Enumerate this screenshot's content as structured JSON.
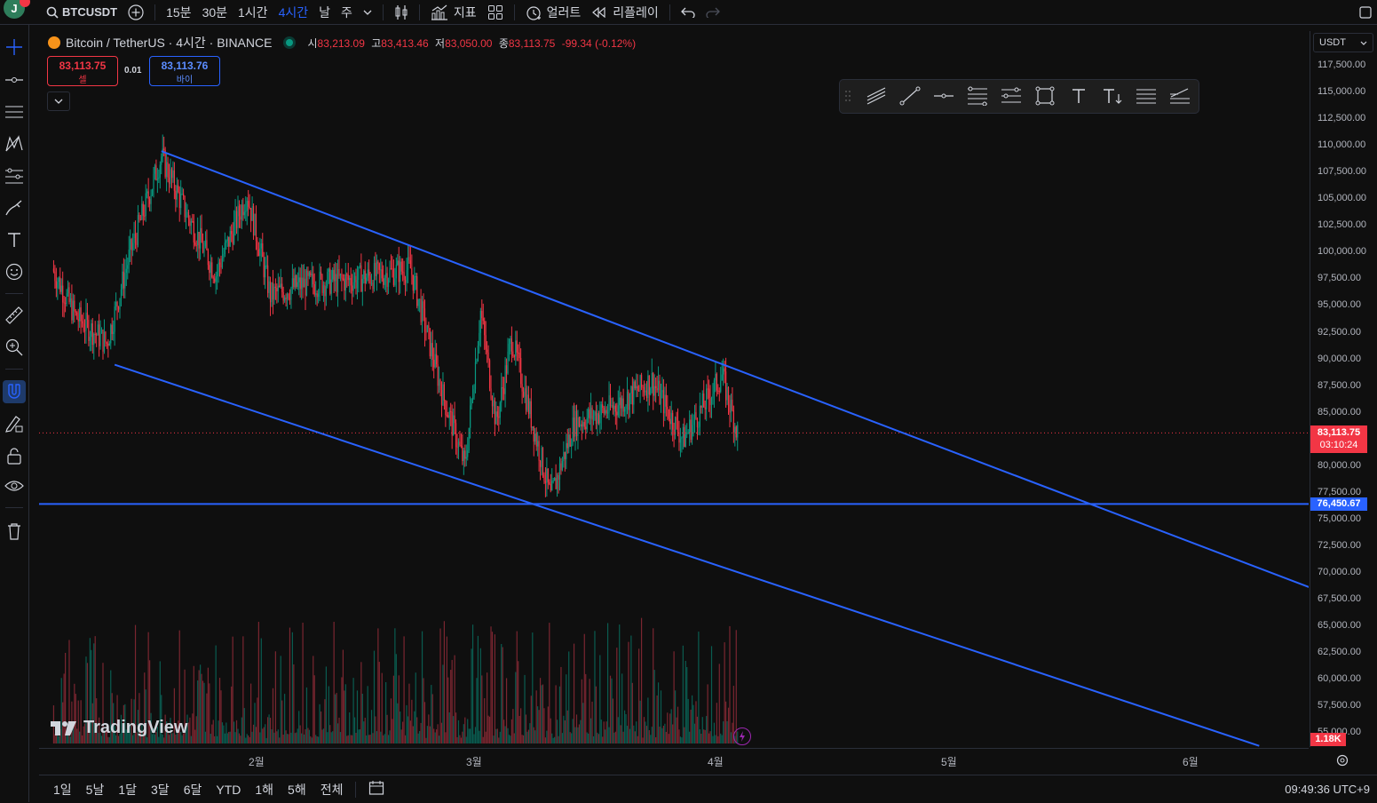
{
  "header": {
    "avatar_letter": "J",
    "symbol": "BTCUSDT",
    "intervals": [
      "15분",
      "30분",
      "1시간",
      "4시간",
      "날",
      "주"
    ],
    "active_interval": "4시간",
    "indicators_label": "지표",
    "alert_label": "얼러트",
    "replay_label": "리플레이"
  },
  "legend": {
    "title": "Bitcoin / TetherUS · 4시간 · BINANCE",
    "open_label": "시",
    "open": "83,213.09",
    "high_label": "고",
    "high": "83,413.46",
    "low_label": "저",
    "low": "83,050.00",
    "close_label": "종",
    "close": "83,113.75",
    "change": "-99.34 (-0.12%)"
  },
  "trade": {
    "sell_price": "83,113.75",
    "sell_label": "셀",
    "spread": "0.01",
    "buy_price": "83,113.76",
    "buy_label": "바이"
  },
  "price_axis": {
    "currency": "USDT",
    "labels": [
      "117,500.00",
      "115,000.00",
      "112,500.00",
      "110,000.00",
      "107,500.00",
      "105,000.00",
      "102,500.00",
      "100,000.00",
      "97,500.00",
      "95,000.00",
      "92,500.00",
      "90,000.00",
      "87,500.00",
      "85,000.00",
      "82,500.00",
      "80,000.00",
      "77,500.00",
      "75,000.00",
      "72,500.00",
      "70,000.00",
      "67,500.00",
      "65,000.00",
      "62,500.00",
      "60,000.00",
      "57,500.00",
      "55,000.00"
    ],
    "current_price": "83,113.75",
    "countdown": "03:10:24",
    "line_price": "76,450.67",
    "volume_label": "1.18K"
  },
  "time_axis": {
    "labels": [
      "2월",
      "3월",
      "4월",
      "5월",
      "6월"
    ]
  },
  "bottom": {
    "ranges": [
      "1일",
      "5날",
      "1달",
      "3달",
      "6달",
      "YTD",
      "1해",
      "5해",
      "전체"
    ],
    "clock": "09:49:36 UTC+9"
  },
  "watermark": "TradingView",
  "colors": {
    "up": "#089981",
    "down": "#f23645",
    "line": "#2962ff",
    "accent": "#2962ff"
  },
  "chart_data": {
    "type": "candlestick",
    "series": [
      {
        "name": "BTCUSDT 4시간",
        "points": [
          {
            "date": "2025-01-06",
            "close": 98500
          },
          {
            "date": "2025-01-09",
            "close": 94000
          },
          {
            "date": "2025-01-13",
            "close": 91500
          },
          {
            "date": "2025-01-16",
            "close": 100000
          },
          {
            "date": "2025-01-20",
            "close": 109000
          },
          {
            "date": "2025-01-23",
            "close": 104000
          },
          {
            "date": "2025-01-27",
            "close": 98000
          },
          {
            "date": "2025-01-31",
            "close": 105500
          },
          {
            "date": "2025-02-03",
            "close": 96000
          },
          {
            "date": "2025-02-07",
            "close": 97000
          },
          {
            "date": "2025-02-14",
            "close": 97500
          },
          {
            "date": "2025-02-21",
            "close": 98500
          },
          {
            "date": "2025-02-25",
            "close": 87000
          },
          {
            "date": "2025-02-28",
            "close": 80000
          },
          {
            "date": "2025-03-02",
            "close": 94500
          },
          {
            "date": "2025-03-04",
            "close": 84000
          },
          {
            "date": "2025-03-06",
            "close": 92000
          },
          {
            "date": "2025-03-11",
            "close": 77000
          },
          {
            "date": "2025-03-14",
            "close": 84000
          },
          {
            "date": "2025-03-19",
            "close": 85500
          },
          {
            "date": "2025-03-24",
            "close": 88000
          },
          {
            "date": "2025-03-28",
            "close": 82500
          },
          {
            "date": "2025-04-02",
            "close": 88500
          },
          {
            "date": "2025-04-04",
            "close": 83113.75
          }
        ]
      }
    ],
    "trendlines": [
      {
        "label": "upper",
        "from": {
          "date": "2025-01-20",
          "price": 109500
        },
        "to": {
          "date": "2025-06-17",
          "price": 68500
        }
      },
      {
        "label": "lower",
        "from": {
          "date": "2025-01-14",
          "price": 89500
        },
        "to": {
          "date": "2025-06-10",
          "price": 53800
        }
      }
    ],
    "horizontal_line": 76450.67,
    "ylim": [
      53500,
      119000
    ],
    "y_scale": "linear",
    "grid": false
  }
}
